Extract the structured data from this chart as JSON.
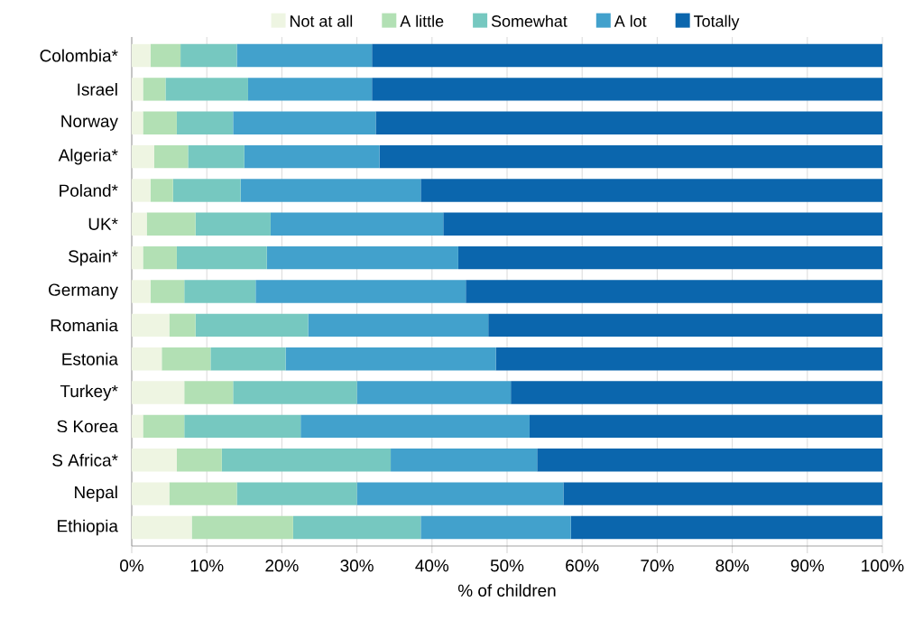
{
  "chart_data": {
    "type": "bar",
    "orientation": "horizontal",
    "stacked": true,
    "categories": [
      "Colombia*",
      "Israel",
      "Norway",
      "Algeria*",
      "Poland*",
      "UK*",
      "Spain*",
      "Germany",
      "Romania",
      "Estonia",
      "Turkey*",
      "S Korea",
      "S Africa*",
      "Nepal",
      "Ethiopia"
    ],
    "series": [
      {
        "name": "Not at all",
        "color": "#eef5e2",
        "values": [
          2.5,
          1.5,
          1.5,
          3,
          2.5,
          2,
          1.5,
          2.5,
          5,
          4,
          7,
          1.5,
          6,
          5,
          8
        ]
      },
      {
        "name": "A little",
        "color": "#b2e0b4",
        "values": [
          4,
          3,
          4.5,
          4.5,
          3,
          6.5,
          4.5,
          4.5,
          3.5,
          6.5,
          6.5,
          5.5,
          6,
          9,
          13.5
        ]
      },
      {
        "name": "Somewhat",
        "color": "#76c8c0",
        "values": [
          7.5,
          11,
          7.5,
          7.5,
          9,
          10,
          12,
          9.5,
          15,
          10,
          16.5,
          15.5,
          22.5,
          16,
          17
        ]
      },
      {
        "name": "A lot",
        "color": "#42a1cc",
        "values": [
          18,
          16.5,
          19,
          18,
          24,
          23,
          25.5,
          28,
          24,
          28,
          20.5,
          30.5,
          19.5,
          27.5,
          20
        ]
      },
      {
        "name": "Totally",
        "color": "#0b66ad",
        "values": [
          68,
          68,
          67.5,
          67,
          61.5,
          58.5,
          56.5,
          55.5,
          52.5,
          51.5,
          49.5,
          47,
          46,
          42.5,
          41.5
        ]
      }
    ],
    "xlabel": "% of children",
    "xlim": [
      0,
      100
    ],
    "xticks": [
      {
        "value": 0,
        "label": "0%"
      },
      {
        "value": 10,
        "label": "10%"
      },
      {
        "value": 20,
        "label": "20%"
      },
      {
        "value": 30,
        "label": "30%"
      },
      {
        "value": 40,
        "label": "40%"
      },
      {
        "value": 50,
        "label": "50%"
      },
      {
        "value": 60,
        "label": "60%"
      },
      {
        "value": 70,
        "label": "70%"
      },
      {
        "value": 80,
        "label": "80%"
      },
      {
        "value": 90,
        "label": "90%"
      },
      {
        "value": 100,
        "label": "100%"
      }
    ],
    "grid": "x",
    "legend": "top"
  }
}
